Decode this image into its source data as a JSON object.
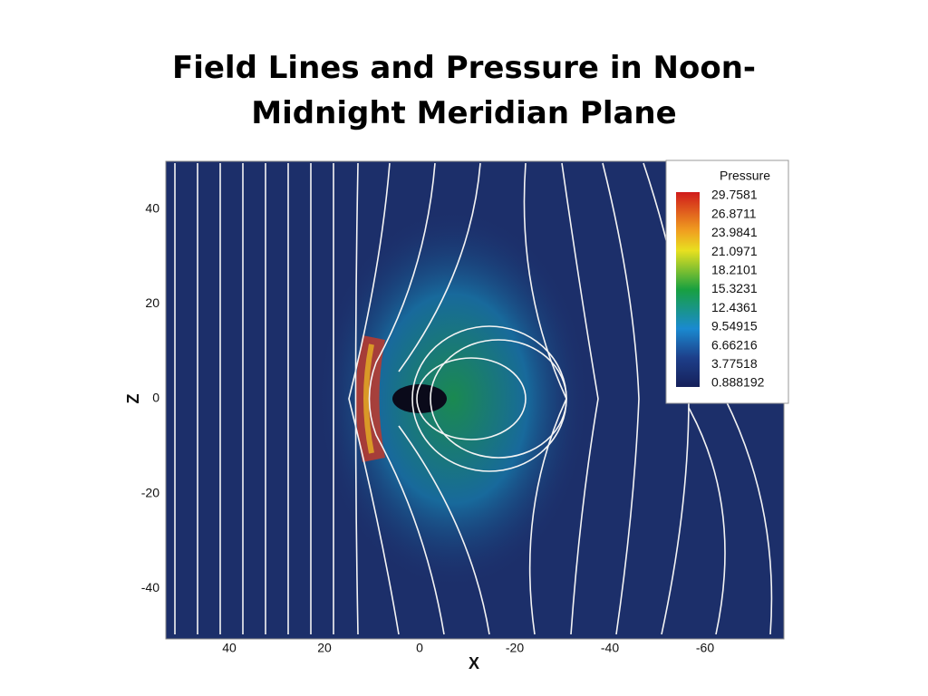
{
  "title": "Field Lines and Pressure in Noon-Midnight Meridian Plane",
  "plot": {
    "x_label": "X",
    "y_label": "Z",
    "x_ticks": [
      40,
      20,
      0,
      -20,
      -40,
      -60
    ],
    "y_ticks": [
      40,
      20,
      0,
      -20,
      -40
    ],
    "legend": {
      "title": "Pressure",
      "levels": [
        29.7581,
        26.8711,
        23.9841,
        21.0971,
        18.2101,
        15.3231,
        12.4361,
        9.54915,
        6.66216,
        3.77518,
        0.888192
      ]
    }
  }
}
